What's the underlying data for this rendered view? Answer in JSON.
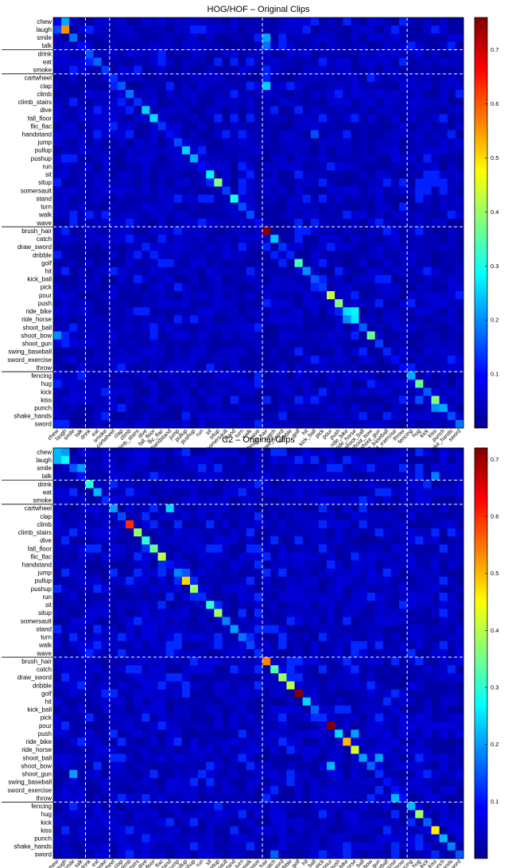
{
  "chart_data": [
    {
      "type": "heatmap",
      "title": "HOG/HOF – Original Clips",
      "labels": [
        "chew",
        "laugh",
        "smile",
        "talk",
        "drink",
        "eat",
        "smoke",
        "cartwheel",
        "clap",
        "climb",
        "climb_stairs",
        "dive",
        "fall_floor",
        "flic_flac",
        "handstand",
        "jump",
        "pullup",
        "pushup",
        "run",
        "sit",
        "situp",
        "somersault",
        "stand",
        "turn",
        "walk",
        "wave",
        "brush_hair",
        "catch",
        "draw_sword",
        "dribble",
        "golf",
        "hit",
        "kick_ball",
        "pick",
        "pour",
        "push",
        "ride_bike",
        "ride_horse",
        "shoot_ball",
        "shoot_bow",
        "shoot_gun",
        "swing_baseball",
        "sword_exercise",
        "throw",
        "fencing",
        "hug",
        "kick",
        "kiss",
        "punch",
        "shake_hands",
        "sword"
      ],
      "group_end_labels": [
        "talk",
        "smoke",
        "wave",
        "throw"
      ],
      "colorbar": {
        "colormap": "jet",
        "range": [
          0,
          0.76
        ],
        "ticks": [
          0.1,
          0.2,
          0.3,
          0.4,
          0.5,
          0.6,
          0.7
        ]
      },
      "diagonal": [
        0.08,
        0.56,
        0.18,
        0.1,
        0.16,
        0.17,
        0.14,
        0.13,
        0.16,
        0.18,
        0.13,
        0.25,
        0.26,
        0.13,
        0.1,
        0.15,
        0.25,
        0.22,
        0.1,
        0.28,
        0.38,
        0.14,
        0.3,
        0.15,
        0.15,
        0.1,
        0.76,
        0.24,
        0.13,
        0.12,
        0.34,
        0.2,
        0.16,
        0.14,
        0.43,
        0.38,
        0.26,
        0.27,
        0.16,
        0.36,
        0.14,
        0.12,
        0.1,
        0.1,
        0.22,
        0.36,
        0.16,
        0.38,
        0.22,
        0.15,
        0.18
      ],
      "notable_off_diagonal": [
        {
          "row": "chew",
          "col": "laugh",
          "value": 0.22
        },
        {
          "row": "smile",
          "col": "brush_hair",
          "value": 0.22
        },
        {
          "row": "laugh",
          "col": "chew",
          "value": 0.15
        },
        {
          "row": "clap",
          "col": "brush_hair",
          "value": 0.25
        },
        {
          "row": "talk",
          "col": "brush_hair",
          "value": 0.18
        },
        {
          "row": "ride_bike",
          "col": "ride_horse",
          "value": 0.28
        },
        {
          "row": "ride_horse",
          "col": "ride_bike",
          "value": 0.2
        },
        {
          "row": "shoot_bow",
          "col": "chew",
          "value": 0.2
        },
        {
          "row": "handstand",
          "col": "kick_ball",
          "value": 0.15
        },
        {
          "row": "kiss",
          "col": "hug",
          "value": 0.15
        },
        {
          "row": "punch",
          "col": "kiss",
          "value": 0.2
        }
      ],
      "background_level": 0.02
    },
    {
      "type": "heatmap",
      "title": "C2 – Original Clips",
      "labels": [
        "chew",
        "laugh",
        "smile",
        "talk",
        "drink",
        "eat",
        "smoke",
        "cartwheel",
        "clap",
        "climb",
        "climb_stairs",
        "dive",
        "fall_floor",
        "flic_flac",
        "handstand",
        "jump",
        "pullup",
        "pushup",
        "run",
        "sit",
        "situp",
        "somersault",
        "stand",
        "turn",
        "walk",
        "wave",
        "brush_hair",
        "catch",
        "draw_sword",
        "dribble",
        "golf",
        "hit",
        "kick_ball",
        "pick",
        "pour",
        "push",
        "ride_bike",
        "ride_horse",
        "shoot_ball",
        "shoot_bow",
        "shoot_gun",
        "swing_baseball",
        "sword_exercise",
        "throw",
        "fencing",
        "hug",
        "kick",
        "kiss",
        "punch",
        "shake_hands",
        "sword"
      ],
      "group_end_labels": [
        "talk",
        "smoke",
        "wave",
        "throw"
      ],
      "colorbar": {
        "colormap": "jet",
        "range": [
          0,
          0.72
        ],
        "ticks": [
          0.1,
          0.2,
          0.3,
          0.4,
          0.5,
          0.6,
          0.7
        ]
      },
      "diagonal": [
        0.22,
        0.28,
        0.15,
        0.1,
        0.3,
        0.22,
        0.12,
        0.2,
        0.14,
        0.6,
        0.38,
        0.3,
        0.34,
        0.4,
        0.1,
        0.18,
        0.48,
        0.38,
        0.12,
        0.3,
        0.38,
        0.18,
        0.2,
        0.17,
        0.14,
        0.12,
        0.54,
        0.32,
        0.38,
        0.4,
        0.72,
        0.24,
        0.16,
        0.12,
        0.72,
        0.24,
        0.5,
        0.42,
        0.2,
        0.16,
        0.12,
        0.1,
        0.1,
        0.1,
        0.22,
        0.38,
        0.16,
        0.46,
        0.22,
        0.18,
        0.15
      ],
      "notable_off_diagonal": [
        {
          "row": "chew",
          "col": "laugh",
          "value": 0.2
        },
        {
          "row": "laugh",
          "col": "chew",
          "value": 0.22
        },
        {
          "row": "smile",
          "col": "talk",
          "value": 0.2
        },
        {
          "row": "talk",
          "col": "kiss",
          "value": 0.18
        },
        {
          "row": "cartwheel",
          "col": "handstand",
          "value": 0.24
        },
        {
          "row": "jump",
          "col": "pullup",
          "value": 0.15
        },
        {
          "row": "shoot_ball",
          "col": "shoot_gun",
          "value": 0.2
        },
        {
          "row": "shoot_bow",
          "col": "pour",
          "value": 0.22
        },
        {
          "row": "shoot_gun",
          "col": "smile",
          "value": 0.2
        },
        {
          "row": "throw",
          "col": "sword_exercise",
          "value": 0.22
        },
        {
          "row": "push",
          "col": "ride_horse",
          "value": 0.2
        },
        {
          "row": "sword",
          "col": "catch",
          "value": 0.16
        }
      ],
      "background_level": 0.02
    }
  ]
}
